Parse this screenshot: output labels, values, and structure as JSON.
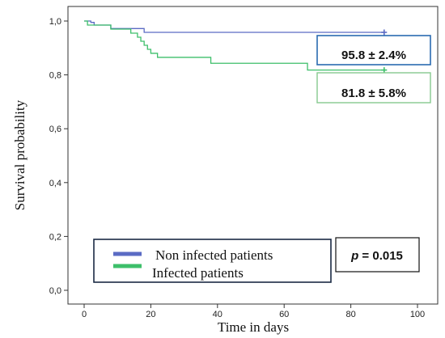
{
  "chart_data": {
    "type": "line",
    "step": true,
    "xlabel": "Time in days",
    "ylabel": "Survival probability",
    "xlim": [
      0,
      100
    ],
    "ylim": [
      0,
      1
    ],
    "xticks": [
      "0",
      "20",
      "40",
      "60",
      "80",
      "100"
    ],
    "yticks": [
      "0,0",
      "0,2",
      "0,4",
      "0,6",
      "0,8",
      "1,0"
    ],
    "grid": false,
    "legend_position": "bottom-left",
    "series": [
      {
        "name": "Non infected patients",
        "color": "#5b6bc4",
        "x": [
          0,
          2,
          3,
          8,
          18,
          90
        ],
        "y": [
          1.0,
          0.995,
          0.985,
          0.972,
          0.958,
          0.958
        ],
        "censor_x": [
          90
        ],
        "censor_y": [
          0.958
        ],
        "label": "95.8 ± 2.4%",
        "label_box_color": "#2a6bb0"
      },
      {
        "name": "Infected patients",
        "color": "#3dbf6a",
        "x": [
          0,
          1,
          8,
          14,
          16,
          17,
          18,
          19,
          20,
          22,
          38,
          67,
          90
        ],
        "y": [
          1.0,
          0.985,
          0.97,
          0.955,
          0.94,
          0.925,
          0.91,
          0.895,
          0.88,
          0.865,
          0.843,
          0.818,
          0.818
        ],
        "censor_x": [
          90
        ],
        "censor_y": [
          0.818
        ],
        "label": "81.8 ± 5.8%",
        "label_box_color": "#86c98e"
      }
    ],
    "p_value": {
      "prefix": "p",
      "text": " = 0.015"
    }
  }
}
